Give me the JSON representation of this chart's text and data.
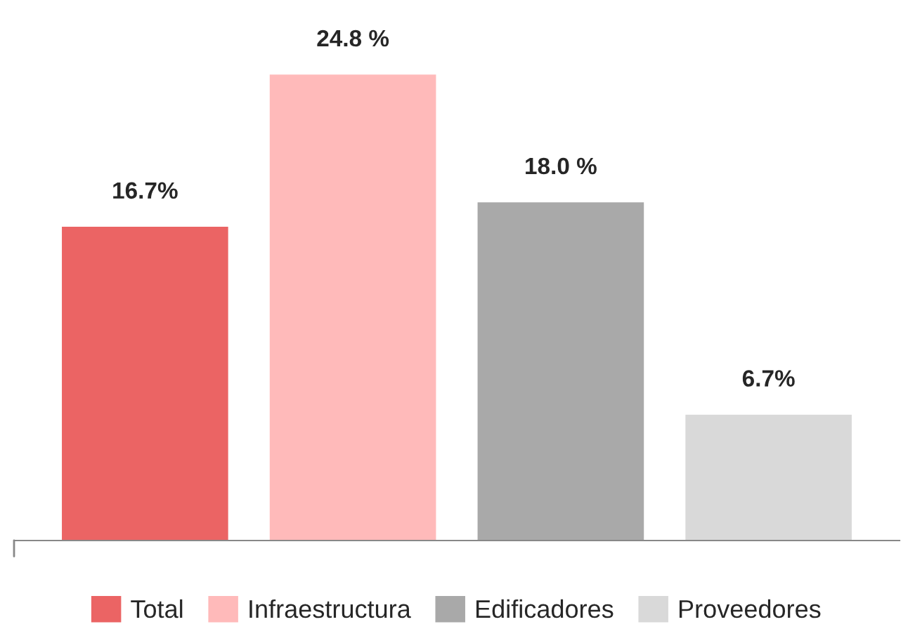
{
  "chart_data": {
    "type": "bar",
    "categories": [
      null,
      null,
      null,
      null
    ],
    "stacked": true,
    "series": [
      {
        "name": "Total",
        "color": "#eb6464",
        "values": [
          16.7,
          null,
          null,
          null
        ],
        "value_labels": [
          "16.7%",
          null,
          null,
          null
        ]
      },
      {
        "name": "Infraestructura",
        "color": "#ffbaba",
        "values": [
          null,
          24.8,
          null,
          null
        ],
        "value_labels": [
          null,
          "24.8 %",
          null,
          null
        ]
      },
      {
        "name": "Edificadores",
        "color": "#a9a9a9",
        "values": [
          null,
          null,
          18.0,
          null
        ],
        "value_labels": [
          null,
          null,
          "18.0 %",
          null
        ]
      },
      {
        "name": "Proveedores",
        "color": "#d9d9d9",
        "values": [
          null,
          null,
          null,
          6.7
        ],
        "value_labels": [
          null,
          null,
          null,
          "6.7%"
        ]
      }
    ],
    "legend": "bottom",
    "grid": false
  }
}
